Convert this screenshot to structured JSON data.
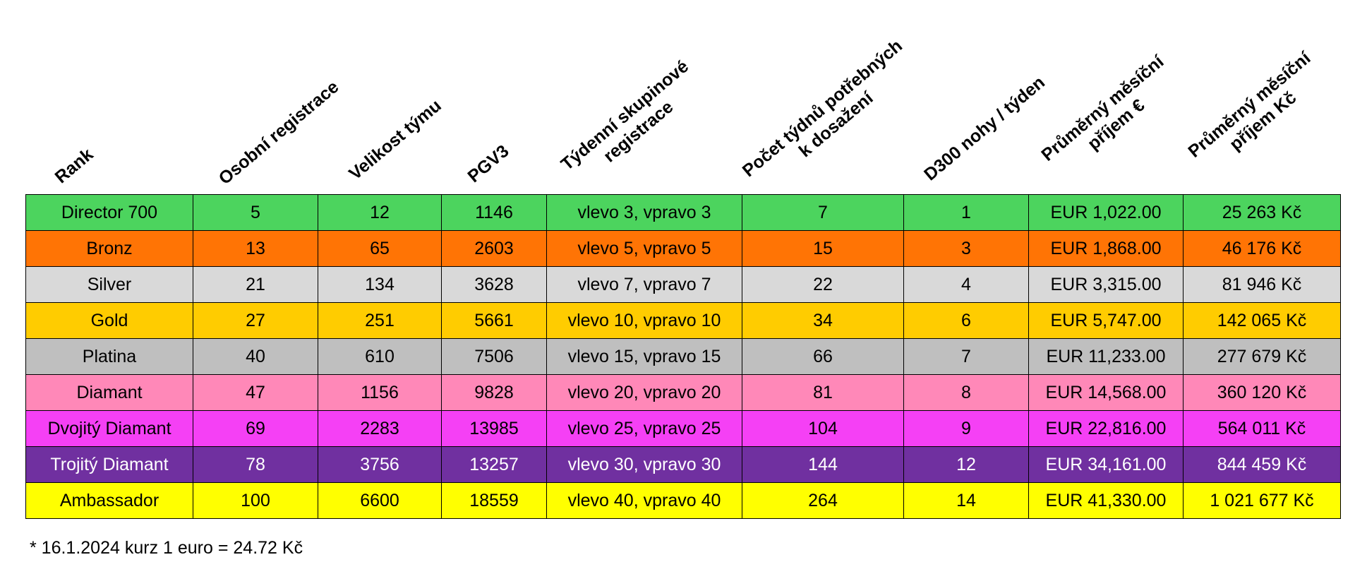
{
  "chart_data": {
    "type": "table",
    "headers": [
      [
        "Rank"
      ],
      [
        "Osobní registrace"
      ],
      [
        "Velikost týmu"
      ],
      [
        "PGV3"
      ],
      [
        "Týdenní skupinové",
        "registrace"
      ],
      [
        "Počet týdnů potřebných",
        "k dosažení"
      ],
      [
        "D300 nohy / týden"
      ],
      [
        "Průměrný měsíční",
        "příjem €"
      ],
      [
        "Průměrný měsíční",
        "příjem Kč"
      ]
    ],
    "rows": [
      {
        "color": "#4cd45e",
        "cells": [
          "Director 700",
          "5",
          "12",
          "1146",
          "vlevo 3, vpravo 3",
          "7",
          "1",
          "EUR 1,022.00",
          "25 263 Kč"
        ]
      },
      {
        "color": "#ff7405",
        "cells": [
          "Bronz",
          "13",
          "65",
          "2603",
          "vlevo 5, vpravo 5",
          "15",
          "3",
          "EUR 1,868.00",
          "46 176 Kč"
        ]
      },
      {
        "color": "#d9d9d9",
        "cells": [
          "Silver",
          "21",
          "134",
          "3628",
          "vlevo 7, vpravo 7",
          "22",
          "4",
          "EUR 3,315.00",
          "81 946 Kč"
        ]
      },
      {
        "color": "#ffcc00",
        "cells": [
          "Gold",
          "27",
          "251",
          "5661",
          "vlevo 10, vpravo 10",
          "34",
          "6",
          "EUR 5,747.00",
          "142 065 Kč"
        ]
      },
      {
        "color": "#bfbfbf",
        "cells": [
          "Platina",
          "40",
          "610",
          "7506",
          "vlevo 15, vpravo 15",
          "66",
          "7",
          "EUR 11,233.00",
          "277 679 Kč"
        ]
      },
      {
        "color": "#ff88b8",
        "cells": [
          "Diamant",
          "47",
          "1156",
          "9828",
          "vlevo 20, vpravo 20",
          "81",
          "8",
          "EUR 14,568.00",
          "360 120 Kč"
        ]
      },
      {
        "color": "#f540f5",
        "cells": [
          "Dvojitý Diamant",
          "69",
          "2283",
          "13985",
          "vlevo 25, vpravo 25",
          "104",
          "9",
          "EUR 22,816.00",
          "564 011 Kč"
        ]
      },
      {
        "color": "#7030a0",
        "text_color": "#ffffff",
        "cells": [
          "Trojitý Diamant",
          "78",
          "3756",
          "13257",
          "vlevo 30, vpravo 30",
          "144",
          "12",
          "EUR 34,161.00",
          "844 459 Kč"
        ]
      },
      {
        "color": "#ffff00",
        "cells": [
          "Ambassador",
          "100",
          "6600",
          "18559",
          "vlevo 40, vpravo 40",
          "264",
          "14",
          "EUR 41,330.00",
          "1 021 677 Kč"
        ]
      }
    ],
    "footnote": "* 16.1.2024 kurz 1 euro = 24.72 Kč"
  }
}
